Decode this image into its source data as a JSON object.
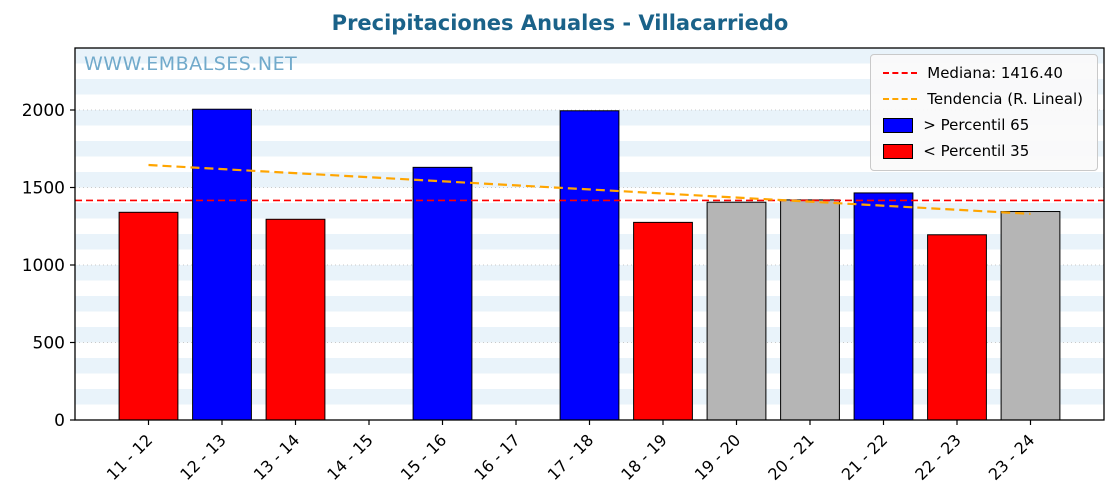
{
  "title": "Precipitaciones Anuales - Villacarriedo",
  "watermark": "WWW.EMBALSES.NET",
  "chart_data": {
    "type": "bar",
    "categories": [
      "11 - 12",
      "12 - 13",
      "13 - 14",
      "14 - 15",
      "15 - 16",
      "16 - 17",
      "17 - 18",
      "18 - 19",
      "19 - 20",
      "20 - 21",
      "21 - 22",
      "22 - 23",
      "23 - 24"
    ],
    "values": [
      1340,
      2005,
      1295,
      null,
      1630,
      null,
      1995,
      1275,
      1405,
      1420,
      1465,
      1195,
      1345
    ],
    "bar_classes": [
      "below",
      "above",
      "below",
      null,
      "above",
      null,
      "above",
      "below",
      "mid",
      "mid",
      "above",
      "below",
      "mid"
    ],
    "median": 1416.4,
    "trend": {
      "start": 1645,
      "end": 1330
    },
    "ylim": [
      0,
      2400
    ],
    "yticks": [
      0,
      500,
      1000,
      1500,
      2000
    ],
    "band_step": 100,
    "grid": true,
    "legend_position": "upper right",
    "colors": {
      "above": "#0000ff",
      "below": "#ff0000",
      "mid": "#b5b5b5",
      "edge": "#000000",
      "median": "#ff0000",
      "trend": "#ffa500",
      "band_a": "#e9f3fa",
      "band_b": "#ffffff",
      "title": "#1a6289",
      "watermark": "#71aacb"
    },
    "legend": [
      {
        "label": "Mediana: 1416.40",
        "type": "dashed-line",
        "color": "#ff0000"
      },
      {
        "label": "Tendencia (R. Lineal)",
        "type": "dashed-line",
        "color": "#ffa500"
      },
      {
        "label": "> Percentil 65",
        "type": "patch",
        "color": "#0000ff"
      },
      {
        "label": "< Percentil 35",
        "type": "patch",
        "color": "#ff0000"
      }
    ]
  }
}
